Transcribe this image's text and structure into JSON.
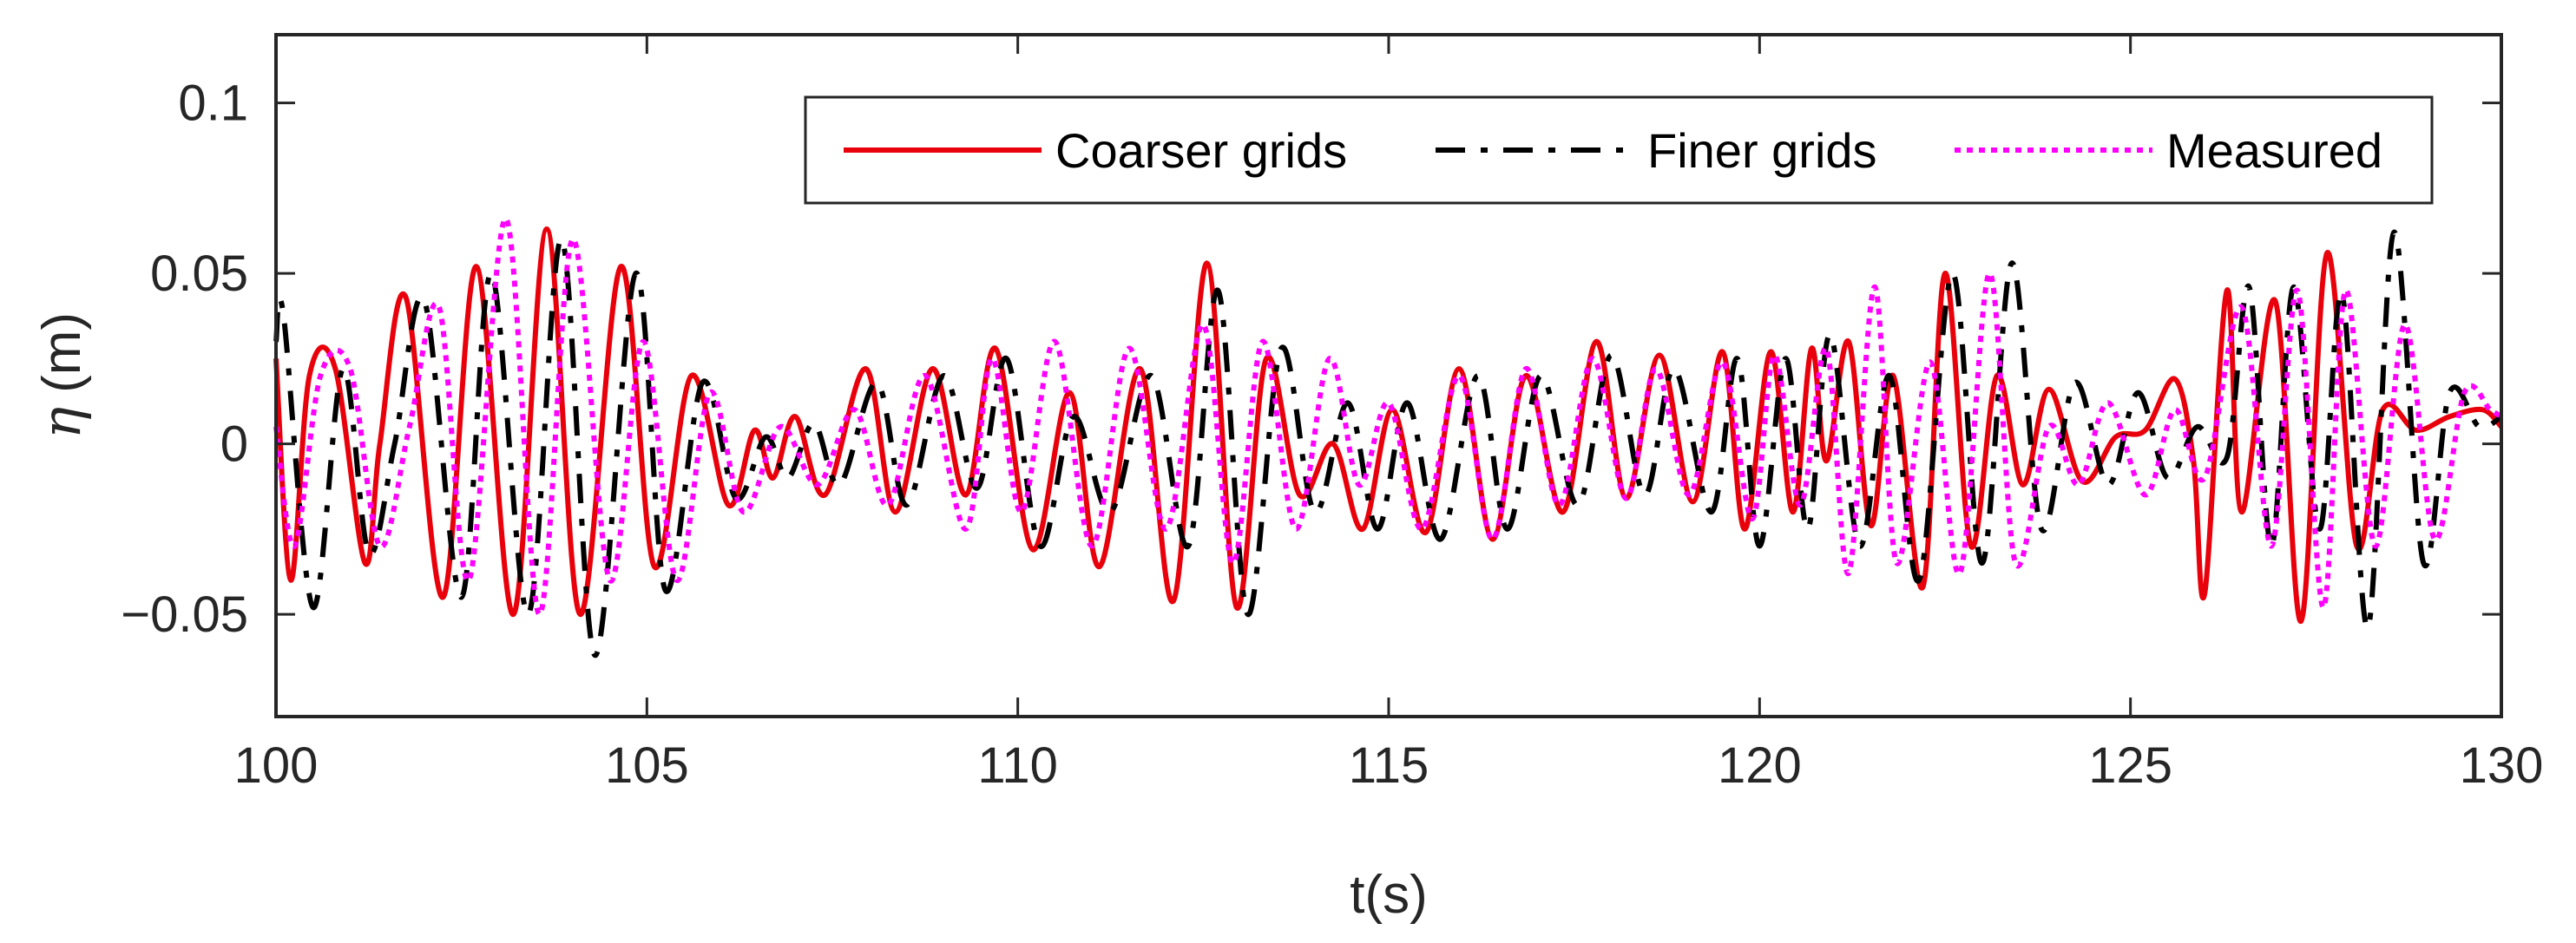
{
  "chart_data": {
    "type": "line",
    "title": "",
    "xlabel": "t(s)",
    "ylabel_symbol": "η",
    "ylabel_unit": "(m)",
    "xlim": [
      100,
      130
    ],
    "ylim": [
      -0.08,
      0.12
    ],
    "xticks": [
      100,
      105,
      110,
      115,
      120,
      125,
      130
    ],
    "xtick_labels": [
      "100",
      "105",
      "110",
      "115",
      "120",
      "125",
      "130"
    ],
    "yticks": [
      -0.05,
      0,
      0.05,
      0.1
    ],
    "ytick_labels": [
      "−0.05",
      "0",
      "0.05",
      "0.1"
    ],
    "grid": false,
    "legend_position": "top-right",
    "series": [
      {
        "name": "Coarser grids",
        "color": "#e8000b",
        "style": "solid",
        "x": [
          100.0,
          100.2,
          100.45,
          100.8,
          101.2,
          101.4,
          101.75,
          102.25,
          102.7,
          103.2,
          103.65,
          104.1,
          104.65,
          105.1,
          105.6,
          106.1,
          106.45,
          106.7,
          107.0,
          107.4,
          107.95,
          108.35,
          108.85,
          109.3,
          109.7,
          110.2,
          110.7,
          111.1,
          111.65,
          112.1,
          112.55,
          112.95,
          113.35,
          113.8,
          114.25,
          114.65,
          115.05,
          115.5,
          115.95,
          116.4,
          116.85,
          117.35,
          117.8,
          118.2,
          118.65,
          119.1,
          119.5,
          119.8,
          120.15,
          120.45,
          120.7,
          120.9,
          121.2,
          121.5,
          121.8,
          122.2,
          122.5,
          122.85,
          123.2,
          123.55,
          123.9,
          124.35,
          124.8,
          125.2,
          125.6,
          125.85,
          126.0,
          126.3,
          126.5,
          126.95,
          127.3,
          127.65,
          128.05,
          128.4,
          128.85,
          129.3,
          129.75,
          130.0
        ],
        "values": [
          0.025,
          -0.04,
          0.02,
          0.022,
          -0.035,
          0.0,
          0.043,
          -0.045,
          0.052,
          -0.05,
          0.063,
          -0.05,
          0.052,
          -0.036,
          0.02,
          -0.018,
          0.004,
          -0.01,
          0.008,
          -0.015,
          0.022,
          -0.02,
          0.022,
          -0.015,
          0.028,
          -0.031,
          0.015,
          -0.036,
          0.022,
          -0.046,
          0.053,
          -0.048,
          0.025,
          -0.015,
          0.0,
          -0.025,
          0.01,
          -0.026,
          0.022,
          -0.028,
          0.02,
          -0.02,
          0.03,
          -0.016,
          0.026,
          -0.017,
          0.027,
          -0.025,
          0.027,
          -0.02,
          0.028,
          -0.005,
          0.03,
          -0.024,
          0.02,
          -0.042,
          0.05,
          -0.03,
          0.02,
          -0.012,
          0.016,
          -0.011,
          0.002,
          0.004,
          0.019,
          -0.005,
          -0.044,
          0.045,
          -0.02,
          0.042,
          -0.052,
          0.056,
          -0.03,
          0.01,
          0.004,
          0.008,
          0.01,
          0.005
        ]
      },
      {
        "name": "Finer grids",
        "color": "#000000",
        "style": "dashed",
        "x": [
          100.0,
          100.1,
          100.5,
          100.9,
          101.25,
          101.6,
          102.0,
          102.5,
          102.9,
          103.4,
          103.85,
          104.3,
          104.85,
          105.25,
          105.75,
          106.2,
          106.6,
          106.9,
          107.25,
          107.6,
          108.1,
          108.5,
          109.0,
          109.45,
          109.85,
          110.3,
          110.75,
          111.25,
          111.8,
          112.3,
          112.7,
          113.1,
          113.55,
          114.0,
          114.45,
          114.85,
          115.25,
          115.7,
          116.2,
          116.6,
          117.05,
          117.55,
          118.0,
          118.45,
          118.85,
          119.35,
          119.7,
          120.0,
          120.35,
          120.65,
          120.95,
          121.35,
          121.75,
          122.15,
          122.6,
          123.0,
          123.4,
          123.8,
          124.25,
          124.7,
          125.1,
          125.5,
          125.9,
          126.3,
          126.6,
          126.9,
          127.2,
          127.55,
          127.85,
          128.2,
          128.55,
          128.95,
          129.3,
          129.7,
          130.0
        ],
        "values": [
          0.03,
          0.038,
          -0.048,
          0.022,
          -0.032,
          0.0,
          0.042,
          -0.045,
          0.05,
          -0.05,
          0.06,
          -0.062,
          0.05,
          -0.043,
          0.018,
          -0.016,
          0.002,
          -0.01,
          0.006,
          -0.012,
          0.018,
          -0.018,
          0.02,
          -0.013,
          0.025,
          -0.03,
          0.008,
          -0.02,
          0.02,
          -0.03,
          0.045,
          -0.05,
          0.028,
          -0.02,
          0.012,
          -0.025,
          0.012,
          -0.028,
          0.02,
          -0.025,
          0.02,
          -0.018,
          0.026,
          -0.015,
          0.022,
          -0.02,
          0.025,
          -0.03,
          0.025,
          -0.025,
          0.032,
          -0.03,
          0.02,
          -0.04,
          0.05,
          -0.035,
          0.053,
          -0.025,
          0.018,
          -0.012,
          0.015,
          -0.01,
          0.005,
          -0.004,
          0.046,
          -0.03,
          0.046,
          -0.025,
          0.044,
          -0.054,
          0.062,
          -0.035,
          0.015,
          0.005,
          0.008
        ]
      },
      {
        "name": "Measured",
        "color": "#ff00ff",
        "style": "dotted",
        "x": [
          100.0,
          100.25,
          100.6,
          101.0,
          101.4,
          101.8,
          102.2,
          102.6,
          103.1,
          103.55,
          104.0,
          104.5,
          104.95,
          105.4,
          105.85,
          106.3,
          106.8,
          107.3,
          107.8,
          108.25,
          108.75,
          109.3,
          109.65,
          110.05,
          110.5,
          111.0,
          111.5,
          112.0,
          112.5,
          112.9,
          113.3,
          113.75,
          114.2,
          114.6,
          115.0,
          115.45,
          115.95,
          116.4,
          116.85,
          117.3,
          117.75,
          118.2,
          118.6,
          119.05,
          119.5,
          119.9,
          120.2,
          120.55,
          120.9,
          121.2,
          121.55,
          121.85,
          122.3,
          122.7,
          123.1,
          123.45,
          123.9,
          124.3,
          124.7,
          125.2,
          125.6,
          126.0,
          126.5,
          126.9,
          127.25,
          127.6,
          127.9,
          128.3,
          128.7,
          129.1,
          129.5,
          129.85,
          130.0
        ],
        "values": [
          0.005,
          -0.03,
          0.02,
          0.022,
          -0.03,
          0.005,
          0.04,
          -0.04,
          0.066,
          -0.05,
          0.06,
          -0.04,
          0.03,
          -0.04,
          0.015,
          -0.02,
          0.005,
          -0.012,
          0.01,
          -0.018,
          0.02,
          -0.025,
          0.025,
          -0.02,
          0.03,
          -0.03,
          0.028,
          -0.025,
          0.035,
          -0.035,
          0.03,
          -0.025,
          0.025,
          -0.012,
          0.012,
          -0.025,
          0.02,
          -0.028,
          0.022,
          -0.018,
          0.025,
          -0.016,
          0.022,
          -0.015,
          0.024,
          -0.022,
          0.026,
          -0.018,
          0.028,
          -0.038,
          0.046,
          -0.035,
          0.024,
          -0.038,
          0.05,
          -0.035,
          0.005,
          -0.012,
          0.012,
          -0.015,
          0.01,
          -0.01,
          0.04,
          -0.03,
          0.045,
          -0.048,
          0.045,
          -0.03,
          0.035,
          -0.028,
          0.015,
          0.01,
          0.008
        ]
      }
    ]
  }
}
